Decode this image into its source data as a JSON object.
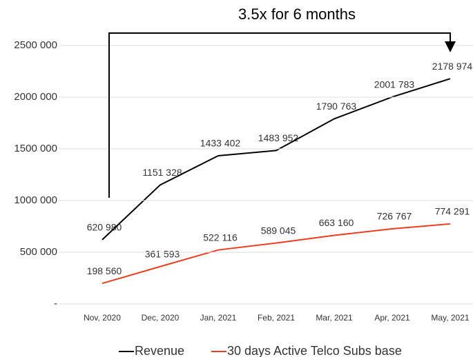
{
  "chart_data": {
    "type": "line",
    "annotation": "3.5x for 6 months",
    "categories": [
      "Nov, 2020",
      "Dec, 2020",
      "Jan, 2021",
      "Feb, 2021",
      "Mar, 2021",
      "Apr, 2021",
      "May, 2021"
    ],
    "series": [
      {
        "name": "Revenue",
        "color": "#000000",
        "values": [
          620980,
          1151328,
          1433402,
          1483952,
          1790763,
          2001783,
          2178974
        ],
        "value_labels": [
          "620 980",
          "1151 328",
          "1433 402",
          "1483 952",
          "1790 763",
          "2001 783",
          "2178 974"
        ]
      },
      {
        "name": "30 days Active Telco Subs base",
        "color": "#f03c1e",
        "values": [
          198560,
          361593,
          522116,
          589045,
          663160,
          726767,
          774291
        ],
        "value_labels": [
          "198 560",
          "361 593",
          "522 116",
          "589 045",
          "663 160",
          "726 767",
          "774 291"
        ]
      }
    ],
    "ylim": [
      0,
      2500000
    ],
    "yticks": [
      {
        "value": 0,
        "label": "-"
      },
      {
        "value": 500000,
        "label": "500 000"
      },
      {
        "value": 1000000,
        "label": "1000 000"
      },
      {
        "value": 1500000,
        "label": "1500 000"
      },
      {
        "value": 2000000,
        "label": "2000 000"
      },
      {
        "value": 2500000,
        "label": "2500 000"
      }
    ],
    "grid": true,
    "legend": "bottom"
  }
}
